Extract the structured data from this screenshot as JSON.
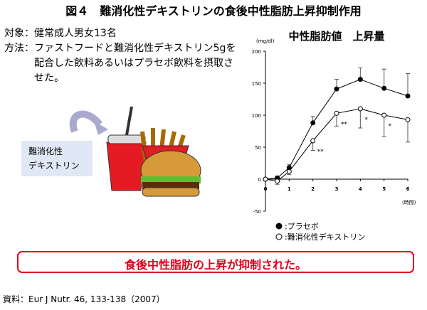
{
  "figure_title": "図４　難消化性デキストリンの食後中性脂肪上昇抑制作用",
  "subject": {
    "label": "対象：",
    "text": "健常成人男女13名"
  },
  "method": {
    "label": "方法：",
    "text": "ファストフードと難消化性デキストリン5gを配合した飲料あるいはプラセボ飲料を摂取させた。"
  },
  "illustration_label": [
    "難消化性",
    "デキストリン"
  ],
  "conclusion": "食後中性脂肪の上昇が抑制された。",
  "source": "資料：Eur J Nutr. 46, 133-138（2007）",
  "chart_data": {
    "type": "line",
    "title": "中性脂肪値　上昇量",
    "y_label": "(mg/dl)",
    "x_label": "(時間)",
    "x": [
      0,
      0.5,
      1,
      2,
      3,
      4,
      5,
      6
    ],
    "series": [
      {
        "name": ":プラセボ",
        "color": "#000000",
        "marker": "filled",
        "values": [
          0,
          2,
          18,
          88,
          141,
          156,
          142,
          130
        ],
        "errors": [
          0,
          3,
          5,
          10,
          15,
          18,
          30,
          35
        ]
      },
      {
        "name": ":難消化性デキストリン",
        "color": "#000000",
        "marker": "open",
        "values": [
          0,
          -3,
          12,
          60,
          103,
          110,
          100,
          93
        ],
        "errors": [
          0,
          5,
          5,
          15,
          20,
          30,
          33,
          35
        ]
      }
    ],
    "annotations": [
      {
        "text": "**",
        "x": 2
      },
      {
        "text": "**",
        "x": 3
      },
      {
        "text": "*",
        "x": 4
      },
      {
        "text": "*",
        "x": 5
      }
    ],
    "xlim": [
      0,
      6
    ],
    "xticks": [
      0,
      1,
      2,
      3,
      4,
      5,
      6
    ],
    "ylim": [
      -50,
      200
    ],
    "yticks": [
      -50,
      0,
      50,
      100,
      150,
      200
    ]
  }
}
